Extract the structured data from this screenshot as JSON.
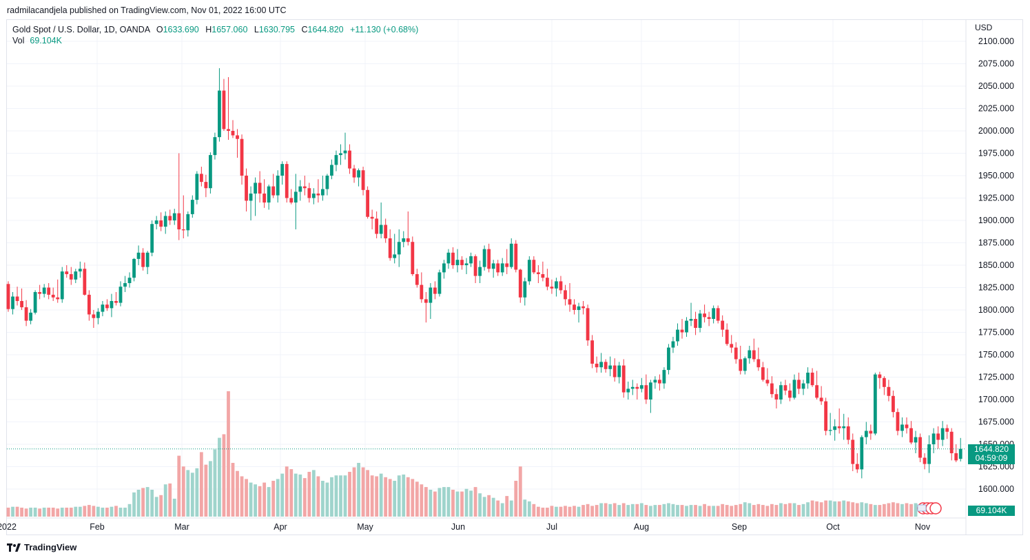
{
  "publisher_line": "radmilacandjela published on TradingView.com, Nov 01, 2022 16:00 UTC",
  "legend": {
    "symbol": "Gold Spot / U.S. Dollar, 1D, OANDA",
    "open_label": "O",
    "open": "1633.690",
    "high_label": "H",
    "high": "1657.060",
    "low_label": "L",
    "low": "1630.795",
    "close_label": "C",
    "close": "1644.820",
    "change": "+11.130 (+0.68%)",
    "vol_label": "Vol",
    "vol_value": "69.104K"
  },
  "axis": {
    "currency": "USD",
    "price_badge": "1644.820",
    "countdown_badge": "04:59:09",
    "volume_badge": "69.104K"
  },
  "footer": {
    "brand": "TradingView"
  },
  "colors": {
    "up": "#089981",
    "down": "#f23645",
    "vol_up": "#9fd4cc",
    "vol_down": "#f2a6a6",
    "grid": "#f0f3fa"
  },
  "chart_data": {
    "type": "candlestick",
    "title": "Gold Spot / U.S. Dollar, 1D, OANDA",
    "ylim": [
      1585,
      2112.5
    ],
    "y_ticks": [
      "1600.000",
      "1625.000",
      "1650.000",
      "1675.000",
      "1700.000",
      "1725.000",
      "1750.000",
      "1775.000",
      "1800.000",
      "1825.000",
      "1850.000",
      "1875.000",
      "1900.000",
      "1925.000",
      "1950.000",
      "1975.000",
      "2000.000",
      "2025.000",
      "2050.000",
      "2075.000",
      "2100.000"
    ],
    "x_ticks": [
      "2022",
      "Feb",
      "Mar",
      "Apr",
      "May",
      "Jun",
      "Jul",
      "Aug",
      "Sep",
      "Oct",
      "Nov"
    ],
    "last_close": 1644.82,
    "ohlc": [
      [
        1829,
        1832,
        1798,
        1801
      ],
      [
        1801,
        1820,
        1795,
        1815
      ],
      [
        1815,
        1826,
        1805,
        1810
      ],
      [
        1810,
        1824,
        1800,
        1803
      ],
      [
        1803,
        1811,
        1782,
        1788
      ],
      [
        1788,
        1801,
        1784,
        1797
      ],
      [
        1797,
        1822,
        1795,
        1820
      ],
      [
        1820,
        1828,
        1812,
        1818
      ],
      [
        1818,
        1829,
        1814,
        1825
      ],
      [
        1825,
        1830,
        1812,
        1817
      ],
      [
        1817,
        1825,
        1810,
        1814
      ],
      [
        1814,
        1834,
        1808,
        1812
      ],
      [
        1812,
        1848,
        1808,
        1843
      ],
      [
        1843,
        1850,
        1836,
        1840
      ],
      [
        1840,
        1848,
        1828,
        1834
      ],
      [
        1834,
        1846,
        1830,
        1843
      ],
      [
        1843,
        1854,
        1836,
        1846
      ],
      [
        1846,
        1853,
        1816,
        1817
      ],
      [
        1817,
        1822,
        1788,
        1795
      ],
      [
        1795,
        1800,
        1780,
        1791
      ],
      [
        1791,
        1802,
        1784,
        1798
      ],
      [
        1798,
        1810,
        1793,
        1806
      ],
      [
        1806,
        1812,
        1799,
        1802
      ],
      [
        1802,
        1818,
        1792,
        1810
      ],
      [
        1810,
        1820,
        1805,
        1808
      ],
      [
        1808,
        1832,
        1804,
        1826
      ],
      [
        1826,
        1838,
        1820,
        1830
      ],
      [
        1830,
        1842,
        1825,
        1836
      ],
      [
        1836,
        1858,
        1832,
        1857
      ],
      [
        1857,
        1872,
        1850,
        1864
      ],
      [
        1864,
        1869,
        1844,
        1848
      ],
      [
        1848,
        1866,
        1840,
        1864
      ],
      [
        1864,
        1900,
        1860,
        1896
      ],
      [
        1896,
        1905,
        1890,
        1900
      ],
      [
        1900,
        1909,
        1888,
        1893
      ],
      [
        1893,
        1910,
        1885,
        1905
      ],
      [
        1905,
        1912,
        1895,
        1900
      ],
      [
        1900,
        1913,
        1895,
        1908
      ],
      [
        1908,
        1975,
        1878,
        1890
      ],
      [
        1890,
        1928,
        1880,
        1889
      ],
      [
        1889,
        1910,
        1882,
        1907
      ],
      [
        1907,
        1928,
        1903,
        1923
      ],
      [
        1923,
        1955,
        1918,
        1952
      ],
      [
        1952,
        1960,
        1938,
        1943
      ],
      [
        1943,
        1951,
        1926,
        1936
      ],
      [
        1936,
        1976,
        1930,
        1973
      ],
      [
        1973,
        1998,
        1968,
        1993
      ],
      [
        1993,
        2070,
        1988,
        2045
      ],
      [
        2045,
        2058,
        2000,
        2002
      ],
      [
        2002,
        2060,
        1990,
        2000
      ],
      [
        2000,
        2012,
        1992,
        1995
      ],
      [
        1995,
        2002,
        1970,
        1991
      ],
      [
        1991,
        1996,
        1940,
        1950
      ],
      [
        1950,
        1958,
        1910,
        1922
      ],
      [
        1922,
        1938,
        1900,
        1930
      ],
      [
        1930,
        1948,
        1905,
        1942
      ],
      [
        1942,
        1955,
        1920,
        1930
      ],
      [
        1930,
        1946,
        1914,
        1920
      ],
      [
        1920,
        1940,
        1912,
        1938
      ],
      [
        1938,
        1952,
        1925,
        1928
      ],
      [
        1928,
        1956,
        1920,
        1950
      ],
      [
        1950,
        1966,
        1940,
        1963
      ],
      [
        1963,
        1966,
        1920,
        1925
      ],
      [
        1925,
        1935,
        1918,
        1920
      ],
      [
        1920,
        1952,
        1890,
        1932
      ],
      [
        1932,
        1945,
        1922,
        1938
      ],
      [
        1938,
        1950,
        1928,
        1936
      ],
      [
        1936,
        1942,
        1920,
        1925
      ],
      [
        1925,
        1936,
        1918,
        1930
      ],
      [
        1930,
        1946,
        1920,
        1928
      ],
      [
        1928,
        1950,
        1922,
        1935
      ],
      [
        1935,
        1952,
        1928,
        1950
      ],
      [
        1950,
        1968,
        1946,
        1962
      ],
      [
        1962,
        1978,
        1955,
        1973
      ],
      [
        1973,
        1985,
        1962,
        1975
      ],
      [
        1975,
        1998,
        1968,
        1978
      ],
      [
        1978,
        1985,
        1952,
        1958
      ],
      [
        1958,
        1962,
        1942,
        1948
      ],
      [
        1948,
        1958,
        1938,
        1956
      ],
      [
        1956,
        1960,
        1928,
        1934
      ],
      [
        1934,
        1938,
        1902,
        1904
      ],
      [
        1904,
        1912,
        1890,
        1902
      ],
      [
        1902,
        1910,
        1880,
        1885
      ],
      [
        1885,
        1920,
        1880,
        1895
      ],
      [
        1895,
        1902,
        1875,
        1880
      ],
      [
        1880,
        1890,
        1855,
        1858
      ],
      [
        1858,
        1885,
        1852,
        1862
      ],
      [
        1862,
        1890,
        1848,
        1876
      ],
      [
        1876,
        1888,
        1870,
        1880
      ],
      [
        1880,
        1910,
        1872,
        1876
      ],
      [
        1876,
        1882,
        1838,
        1840
      ],
      [
        1840,
        1846,
        1825,
        1828
      ],
      [
        1828,
        1842,
        1808,
        1812
      ],
      [
        1812,
        1820,
        1786,
        1808
      ],
      [
        1808,
        1830,
        1790,
        1825
      ],
      [
        1825,
        1832,
        1812,
        1818
      ],
      [
        1818,
        1845,
        1815,
        1842
      ],
      [
        1842,
        1856,
        1835,
        1852
      ],
      [
        1852,
        1868,
        1846,
        1864
      ],
      [
        1864,
        1870,
        1846,
        1850
      ],
      [
        1850,
        1868,
        1842,
        1856
      ],
      [
        1856,
        1860,
        1845,
        1850
      ],
      [
        1850,
        1858,
        1840,
        1852
      ],
      [
        1852,
        1864,
        1848,
        1860
      ],
      [
        1860,
        1862,
        1830,
        1838
      ],
      [
        1838,
        1855,
        1830,
        1848
      ],
      [
        1848,
        1872,
        1844,
        1868
      ],
      [
        1868,
        1874,
        1842,
        1846
      ],
      [
        1846,
        1856,
        1836,
        1852
      ],
      [
        1852,
        1856,
        1838,
        1842
      ],
      [
        1842,
        1858,
        1838,
        1852
      ],
      [
        1852,
        1868,
        1840,
        1848
      ],
      [
        1848,
        1880,
        1846,
        1874
      ],
      [
        1874,
        1878,
        1842,
        1845
      ],
      [
        1845,
        1846,
        1808,
        1814
      ],
      [
        1814,
        1836,
        1805,
        1832
      ],
      [
        1832,
        1860,
        1828,
        1856
      ],
      [
        1856,
        1860,
        1840,
        1842
      ],
      [
        1842,
        1850,
        1830,
        1840
      ],
      [
        1840,
        1854,
        1832,
        1836
      ],
      [
        1836,
        1846,
        1822,
        1826
      ],
      [
        1826,
        1834,
        1818,
        1824
      ],
      [
        1824,
        1836,
        1815,
        1832
      ],
      [
        1832,
        1838,
        1818,
        1822
      ],
      [
        1822,
        1828,
        1805,
        1812
      ],
      [
        1812,
        1830,
        1798,
        1806
      ],
      [
        1806,
        1812,
        1795,
        1800
      ],
      [
        1800,
        1808,
        1786,
        1804
      ],
      [
        1804,
        1810,
        1795,
        1802
      ],
      [
        1802,
        1806,
        1760,
        1766
      ],
      [
        1766,
        1772,
        1735,
        1740
      ],
      [
        1740,
        1748,
        1730,
        1736
      ],
      [
        1736,
        1752,
        1730,
        1742
      ],
      [
        1742,
        1745,
        1730,
        1734
      ],
      [
        1734,
        1748,
        1726,
        1738
      ],
      [
        1738,
        1746,
        1720,
        1725
      ],
      [
        1725,
        1742,
        1718,
        1738
      ],
      [
        1738,
        1745,
        1702,
        1708
      ],
      [
        1708,
        1720,
        1700,
        1712
      ],
      [
        1712,
        1722,
        1705,
        1714
      ],
      [
        1714,
        1718,
        1700,
        1712
      ],
      [
        1712,
        1724,
        1708,
        1716
      ],
      [
        1716,
        1728,
        1695,
        1700
      ],
      [
        1700,
        1722,
        1685,
        1719
      ],
      [
        1719,
        1726,
        1712,
        1722
      ],
      [
        1722,
        1728,
        1710,
        1718
      ],
      [
        1718,
        1736,
        1712,
        1733
      ],
      [
        1733,
        1762,
        1728,
        1758
      ],
      [
        1758,
        1770,
        1752,
        1765
      ],
      [
        1765,
        1785,
        1760,
        1778
      ],
      [
        1778,
        1790,
        1768,
        1775
      ],
      [
        1775,
        1792,
        1770,
        1788
      ],
      [
        1788,
        1808,
        1782,
        1790
      ],
      [
        1790,
        1798,
        1772,
        1780
      ],
      [
        1780,
        1800,
        1775,
        1796
      ],
      [
        1796,
        1806,
        1786,
        1792
      ],
      [
        1792,
        1798,
        1782,
        1790
      ],
      [
        1790,
        1805,
        1785,
        1802
      ],
      [
        1802,
        1805,
        1785,
        1788
      ],
      [
        1788,
        1794,
        1770,
        1778
      ],
      [
        1778,
        1785,
        1760,
        1762
      ],
      [
        1762,
        1772,
        1752,
        1758
      ],
      [
        1758,
        1764,
        1740,
        1745
      ],
      [
        1745,
        1760,
        1728,
        1732
      ],
      [
        1732,
        1748,
        1728,
        1746
      ],
      [
        1746,
        1760,
        1740,
        1755
      ],
      [
        1755,
        1768,
        1742,
        1745
      ],
      [
        1745,
        1758,
        1732,
        1736
      ],
      [
        1736,
        1742,
        1720,
        1722
      ],
      [
        1722,
        1735,
        1715,
        1718
      ],
      [
        1718,
        1726,
        1702,
        1706
      ],
      [
        1706,
        1712,
        1690,
        1700
      ],
      [
        1700,
        1720,
        1695,
        1716
      ],
      [
        1716,
        1722,
        1705,
        1710
      ],
      [
        1710,
        1718,
        1698,
        1702
      ],
      [
        1702,
        1728,
        1700,
        1722
      ],
      [
        1722,
        1730,
        1706,
        1712
      ],
      [
        1712,
        1722,
        1705,
        1718
      ],
      [
        1718,
        1736,
        1712,
        1730
      ],
      [
        1730,
        1735,
        1714,
        1716
      ],
      [
        1716,
        1732,
        1700,
        1702
      ],
      [
        1702,
        1715,
        1694,
        1698
      ],
      [
        1698,
        1702,
        1660,
        1665
      ],
      [
        1665,
        1685,
        1660,
        1666
      ],
      [
        1666,
        1678,
        1654,
        1670
      ],
      [
        1670,
        1690,
        1662,
        1668
      ],
      [
        1668,
        1684,
        1655,
        1670
      ],
      [
        1670,
        1680,
        1650,
        1655
      ],
      [
        1655,
        1662,
        1620,
        1628
      ],
      [
        1628,
        1640,
        1618,
        1622
      ],
      [
        1622,
        1660,
        1612,
        1658
      ],
      [
        1658,
        1675,
        1650,
        1665
      ],
      [
        1665,
        1672,
        1655,
        1662
      ],
      [
        1662,
        1730,
        1660,
        1728
      ],
      [
        1728,
        1731,
        1712,
        1724
      ],
      [
        1724,
        1726,
        1705,
        1714
      ],
      [
        1714,
        1722,
        1698,
        1704
      ],
      [
        1704,
        1710,
        1680,
        1686
      ],
      [
        1686,
        1690,
        1660,
        1665
      ],
      [
        1665,
        1680,
        1658,
        1672
      ],
      [
        1672,
        1680,
        1662,
        1668
      ],
      [
        1668,
        1676,
        1650,
        1652
      ],
      [
        1652,
        1665,
        1640,
        1658
      ],
      [
        1658,
        1662,
        1630,
        1635
      ],
      [
        1635,
        1640,
        1622,
        1628
      ],
      [
        1628,
        1660,
        1618,
        1650
      ],
      [
        1650,
        1668,
        1640,
        1662
      ],
      [
        1662,
        1670,
        1645,
        1655
      ],
      [
        1655,
        1676,
        1648,
        1668
      ],
      [
        1668,
        1672,
        1656,
        1664
      ],
      [
        1664,
        1668,
        1632,
        1640
      ],
      [
        1640,
        1650,
        1630,
        1632
      ],
      [
        1633.69,
        1657.06,
        1630.795,
        1644.82
      ]
    ],
    "volume": [
      10,
      11,
      11,
      10,
      9,
      10,
      10,
      9,
      10,
      10,
      10,
      9,
      10,
      10,
      10,
      11,
      11,
      12,
      13,
      12,
      11,
      10,
      10,
      11,
      12,
      10,
      10,
      14,
      27,
      30,
      32,
      33,
      30,
      22,
      24,
      36,
      37,
      20,
      68,
      56,
      52,
      49,
      54,
      72,
      58,
      62,
      75,
      88,
      92,
      140,
      60,
      51,
      45,
      42,
      38,
      36,
      34,
      38,
      33,
      40,
      42,
      48,
      56,
      53,
      48,
      47,
      43,
      50,
      52,
      45,
      40,
      38,
      44,
      46,
      46,
      46,
      50,
      55,
      60,
      55,
      52,
      46,
      45,
      48,
      44,
      42,
      40,
      46,
      47,
      44,
      42,
      39,
      36,
      33,
      30,
      28,
      32,
      33,
      33,
      30,
      28,
      28,
      31,
      29,
      33,
      26,
      22,
      24,
      21,
      18,
      15,
      23,
      18,
      40,
      56,
      19,
      17,
      14,
      11,
      10,
      10,
      12,
      11,
      11,
      12,
      11,
      12,
      11,
      13,
      14,
      12,
      13,
      15,
      15,
      14,
      15,
      13,
      15,
      13,
      14,
      14,
      15,
      13,
      12,
      13,
      13,
      14,
      15,
      14,
      13,
      13,
      12,
      13,
      13,
      12,
      14,
      12,
      12,
      12,
      14,
      13,
      12,
      13,
      14,
      16,
      15,
      13,
      14,
      13,
      12,
      14,
      13,
      15,
      14,
      15,
      15,
      13,
      14,
      16,
      18,
      17,
      16,
      18,
      18,
      17,
      17,
      18,
      17,
      16,
      15,
      16,
      15,
      14,
      13,
      13,
      14,
      15,
      16,
      15,
      14,
      15,
      14,
      15
    ]
  }
}
